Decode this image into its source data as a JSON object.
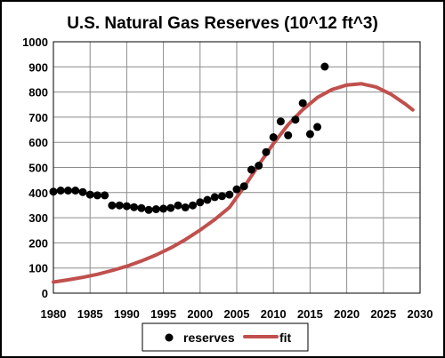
{
  "chart_data": {
    "type": "scatter",
    "title": "U.S. Natural Gas Reserves (10^12 ft^3)",
    "xlabel": "",
    "ylabel": "",
    "xlim": [
      1980,
      2030
    ],
    "ylim": [
      0,
      1000
    ],
    "x_ticks": [
      1980,
      1985,
      1990,
      1995,
      2000,
      2005,
      2010,
      2015,
      2020,
      2025,
      2030
    ],
    "y_ticks": [
      0,
      100,
      200,
      300,
      400,
      500,
      600,
      700,
      800,
      900,
      1000
    ],
    "grid": true,
    "legend_position": "bottom",
    "series": [
      {
        "name": "reserves",
        "kind": "scatter",
        "color": "#000000",
        "points": [
          [
            1980,
            404
          ],
          [
            1981,
            408
          ],
          [
            1982,
            408
          ],
          [
            1983,
            408
          ],
          [
            1984,
            402
          ],
          [
            1985,
            392
          ],
          [
            1986,
            389
          ],
          [
            1987,
            389
          ],
          [
            1988,
            349
          ],
          [
            1989,
            349
          ],
          [
            1990,
            346
          ],
          [
            1991,
            342
          ],
          [
            1992,
            338
          ],
          [
            1993,
            331
          ],
          [
            1994,
            334
          ],
          [
            1995,
            336
          ],
          [
            1996,
            339
          ],
          [
            1997,
            349
          ],
          [
            1998,
            341
          ],
          [
            1999,
            349
          ],
          [
            2000,
            361
          ],
          [
            2001,
            371
          ],
          [
            2002,
            382
          ],
          [
            2003,
            386
          ],
          [
            2004,
            392
          ],
          [
            2005,
            413
          ],
          [
            2006,
            425
          ],
          [
            2007,
            491
          ],
          [
            2008,
            507
          ],
          [
            2009,
            561
          ],
          [
            2010,
            620
          ],
          [
            2011,
            683
          ],
          [
            2012,
            628
          ],
          [
            2013,
            690
          ],
          [
            2014,
            756
          ],
          [
            2015,
            633
          ],
          [
            2016,
            661
          ],
          [
            2017,
            901
          ]
        ]
      },
      {
        "name": "fit",
        "kind": "line",
        "color": "#c0504d",
        "points": [
          [
            1980,
            44
          ],
          [
            1982,
            53
          ],
          [
            1984,
            63
          ],
          [
            1986,
            75
          ],
          [
            1988,
            90
          ],
          [
            1990,
            107
          ],
          [
            1992,
            128
          ],
          [
            1994,
            152
          ],
          [
            1996,
            180
          ],
          [
            1998,
            213
          ],
          [
            2000,
            251
          ],
          [
            2002,
            293
          ],
          [
            2004,
            341
          ],
          [
            2006,
            422
          ],
          [
            2008,
            510
          ],
          [
            2010,
            595
          ],
          [
            2012,
            670
          ],
          [
            2014,
            730
          ],
          [
            2016,
            778
          ],
          [
            2018,
            810
          ],
          [
            2020,
            828
          ],
          [
            2022,
            833
          ],
          [
            2024,
            820
          ],
          [
            2026,
            792
          ],
          [
            2028,
            752
          ],
          [
            2029,
            729
          ]
        ]
      }
    ]
  }
}
